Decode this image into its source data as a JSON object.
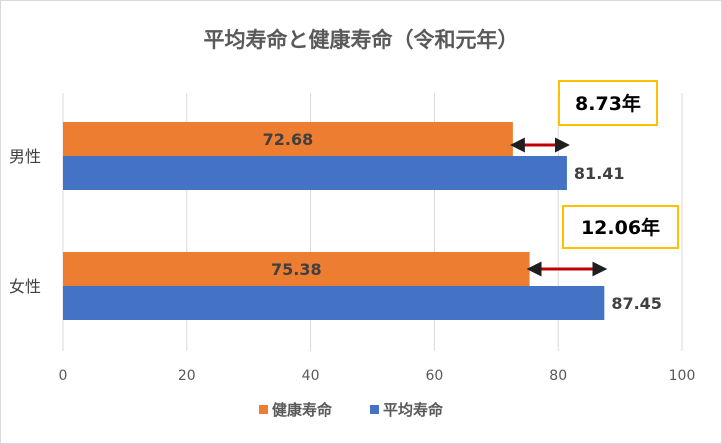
{
  "chart_data": {
    "type": "bar",
    "orientation": "horizontal",
    "title": "平均寿命と健康寿命（令和元年）",
    "categories": [
      "男性",
      "女性"
    ],
    "series": [
      {
        "name": "健康寿命",
        "color": "#ed7d31",
        "values": [
          72.68,
          75.38
        ]
      },
      {
        "name": "平均寿命",
        "color": "#4472c4",
        "values": [
          81.41,
          87.45
        ]
      }
    ],
    "xlim": [
      0,
      100
    ],
    "xticks": [
      0,
      20,
      40,
      60,
      80,
      100
    ],
    "grid": true,
    "legend_position": "bottom",
    "annotations": [
      {
        "category": "男性",
        "text": "8.73年",
        "from": 72.68,
        "to": 81.41
      },
      {
        "category": "女性",
        "text": "12.06年",
        "from": 75.38,
        "to": 87.45
      }
    ],
    "colors": {
      "callout_border": "#ffc000",
      "arrow": "#c00000",
      "gridline": "#d9d9d9"
    }
  }
}
